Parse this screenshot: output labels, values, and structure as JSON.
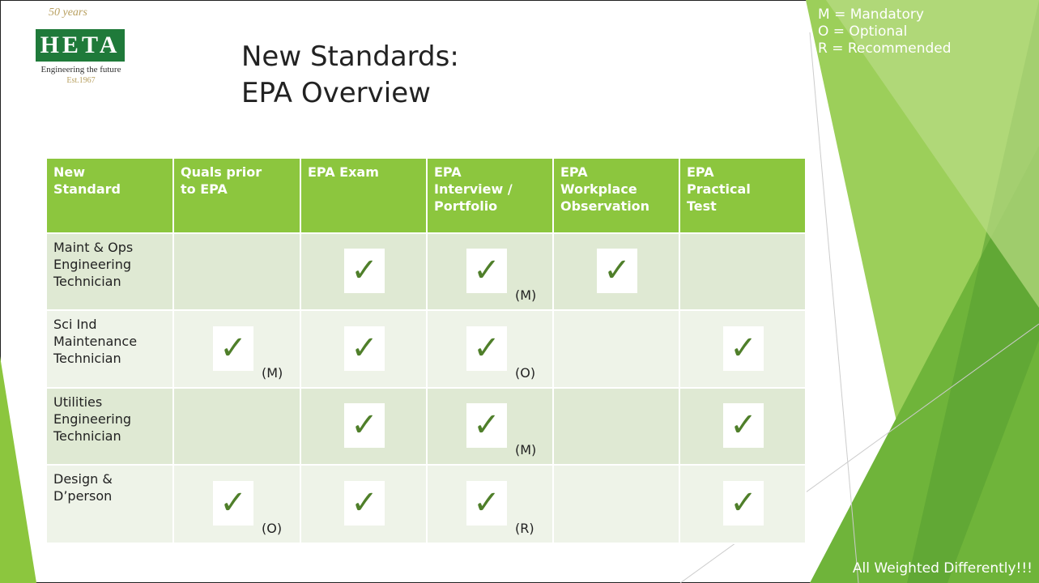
{
  "logo": {
    "badge": "50 years",
    "name": "HETA",
    "tagline": "Engineering the future",
    "est": "Est.1967"
  },
  "header": {
    "title_lines": [
      "New Standards:",
      "EPA Overview"
    ]
  },
  "legend": [
    "M = Mandatory",
    "O = Optional",
    "R = Recommended"
  ],
  "table": {
    "columns": [
      [
        "New",
        "Standard"
      ],
      [
        "Quals prior",
        "to EPA"
      ],
      [
        "EPA Exam"
      ],
      [
        "EPA",
        "Interview /",
        "Portfolio"
      ],
      [
        "EPA",
        "Workplace",
        "Observation"
      ],
      [
        "EPA",
        "Practical",
        "Test"
      ]
    ],
    "rows": [
      {
        "name": [
          "Maint & Ops",
          "Engineering",
          "Technician"
        ],
        "cells": [
          {
            "check": false
          },
          {
            "check": true
          },
          {
            "check": true,
            "note": "(M)"
          },
          {
            "check": true
          },
          {
            "check": false
          }
        ]
      },
      {
        "name": [
          "Sci Ind",
          "Maintenance",
          "Technician"
        ],
        "cells": [
          {
            "check": true,
            "note": "(M)"
          },
          {
            "check": true
          },
          {
            "check": true,
            "note": "(O)"
          },
          {
            "check": false
          },
          {
            "check": true
          }
        ]
      },
      {
        "name": [
          "Utilities",
          "Engineering",
          "Technician"
        ],
        "cells": [
          {
            "check": false
          },
          {
            "check": true
          },
          {
            "check": true,
            "note": "(M)"
          },
          {
            "check": false
          },
          {
            "check": true
          }
        ]
      },
      {
        "name": [
          "Design &",
          "D’person"
        ],
        "cells": [
          {
            "check": true,
            "note": "(O)"
          },
          {
            "check": true
          },
          {
            "check": true,
            "note": "(R)"
          },
          {
            "check": false
          },
          {
            "check": true
          }
        ]
      }
    ]
  },
  "footer": "All Weighted Differently!!!"
}
